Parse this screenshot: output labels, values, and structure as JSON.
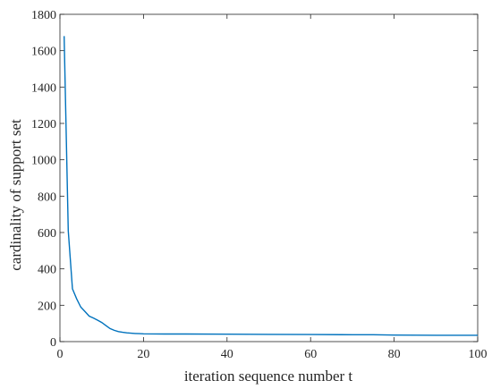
{
  "chart_data": {
    "type": "line",
    "title": "",
    "xlabel": "iteration sequence number t",
    "ylabel": "cardinality of support set",
    "xlim": [
      0,
      100
    ],
    "ylim": [
      0,
      1800
    ],
    "xticks": [
      0,
      20,
      40,
      60,
      80,
      100
    ],
    "yticks": [
      0,
      200,
      400,
      600,
      800,
      1000,
      1200,
      1400,
      1600,
      1800
    ],
    "grid": false,
    "legend": "none",
    "series": [
      {
        "color": "#0072BD",
        "x": [
          1,
          2,
          3,
          4,
          5,
          6,
          7,
          8,
          9,
          10,
          11,
          12,
          13,
          14,
          15,
          16,
          17,
          18,
          19,
          20,
          25,
          30,
          40,
          50,
          60,
          70,
          75,
          80,
          90,
          100
        ],
        "y": [
          1680,
          610,
          290,
          235,
          190,
          165,
          140,
          130,
          118,
          105,
          88,
          72,
          62,
          55,
          51,
          48,
          46,
          45,
          44,
          43,
          42,
          42,
          41,
          40,
          39,
          38,
          38,
          36,
          35,
          35
        ]
      }
    ]
  }
}
